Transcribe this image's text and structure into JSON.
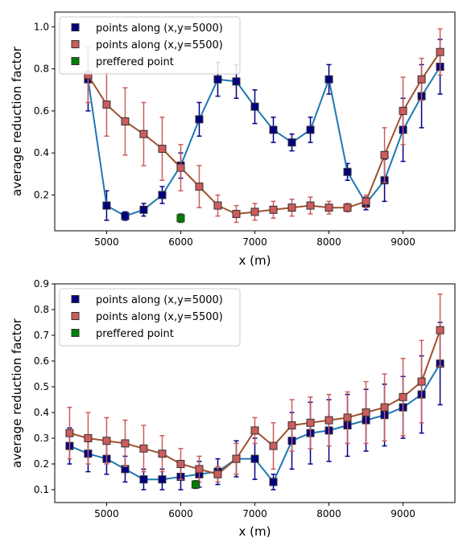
{
  "chart_data": [
    {
      "type": "line",
      "xlabel": "x (m)",
      "ylabel": "average reduction factor",
      "xlim": [
        4300,
        9700
      ],
      "ylim": [
        0.03,
        1.07
      ],
      "xticks": [
        5000,
        6000,
        7000,
        8000,
        9000
      ],
      "xtick_labels": [
        "5000",
        "6000",
        "7000",
        "8000",
        "9000"
      ],
      "yticks": [
        0.2,
        0.4,
        0.6,
        0.8,
        1.0
      ],
      "ytick_labels": [
        "0.2",
        "0.4",
        "0.6",
        "0.8",
        "1.0"
      ],
      "grid": false,
      "legend_position": "top-left",
      "series": [
        {
          "name": "points along (x,y=5000)",
          "color": "#1f77b4",
          "marker_color": "#000080",
          "error_color": "#00008b",
          "x": [
            4750,
            5000,
            5250,
            5500,
            5750,
            6000,
            6250,
            6500,
            6750,
            7000,
            7250,
            7500,
            7750,
            8000,
            8250,
            8500,
            8750,
            9000,
            9250,
            9500
          ],
          "y": [
            0.75,
            0.15,
            0.1,
            0.13,
            0.2,
            0.34,
            0.56,
            0.75,
            0.74,
            0.62,
            0.51,
            0.45,
            0.51,
            0.75,
            0.31,
            0.16,
            0.27,
            0.51,
            0.67,
            0.81
          ],
          "err": [
            0.15,
            0.07,
            0.02,
            0.03,
            0.04,
            0.06,
            0.08,
            0.08,
            0.08,
            0.08,
            0.06,
            0.04,
            0.06,
            0.07,
            0.04,
            0.03,
            0.1,
            0.15,
            0.15,
            0.13
          ]
        },
        {
          "name": "points along (x,y=5500)",
          "color": "#a0522d",
          "marker_color": "#cd5c5c",
          "error_color": "#cd5c5c",
          "x": [
            4750,
            5000,
            5250,
            5500,
            5750,
            6000,
            6250,
            6500,
            6750,
            7000,
            7250,
            7500,
            7750,
            8000,
            8250,
            8500,
            8750,
            9000,
            9250,
            9500
          ],
          "y": [
            0.77,
            0.63,
            0.55,
            0.49,
            0.42,
            0.33,
            0.24,
            0.15,
            0.11,
            0.12,
            0.13,
            0.14,
            0.15,
            0.14,
            0.14,
            0.17,
            0.39,
            0.6,
            0.75,
            0.88
          ],
          "err": [
            0.13,
            0.15,
            0.16,
            0.15,
            0.15,
            0.11,
            0.1,
            0.05,
            0.04,
            0.04,
            0.04,
            0.04,
            0.04,
            0.03,
            0.02,
            0.03,
            0.13,
            0.16,
            0.1,
            0.11
          ]
        },
        {
          "name": "preffered point",
          "color": "#006400",
          "marker_color": "#008000",
          "error_color": "#006400",
          "x": [
            6000
          ],
          "y": [
            0.09
          ],
          "err": [
            0.02
          ]
        }
      ]
    },
    {
      "type": "line",
      "xlabel": "x (m)",
      "ylabel": "average reduction factor",
      "xlim": [
        4300,
        9700
      ],
      "ylim": [
        0.05,
        0.9
      ],
      "xticks": [
        5000,
        6000,
        7000,
        8000,
        9000
      ],
      "xtick_labels": [
        "5000",
        "6000",
        "7000",
        "8000",
        "9000"
      ],
      "yticks": [
        0.1,
        0.2,
        0.3,
        0.4,
        0.5,
        0.6,
        0.7,
        0.8,
        0.9
      ],
      "ytick_labels": [
        "0.1",
        "0.2",
        "0.3",
        "0.4",
        "0.5",
        "0.6",
        "0.7",
        "0.8",
        "0.9"
      ],
      "grid": false,
      "legend_position": "top-left",
      "series": [
        {
          "name": "points along (x,y=5000)",
          "color": "#1f77b4",
          "marker_color": "#000080",
          "error_color": "#00008b",
          "x": [
            4500,
            4750,
            5000,
            5250,
            5500,
            5750,
            6000,
            6250,
            6500,
            6750,
            7000,
            7250,
            7500,
            7750,
            8000,
            8250,
            8500,
            8750,
            9000,
            9250,
            9500
          ],
          "y": [
            0.27,
            0.24,
            0.22,
            0.18,
            0.14,
            0.14,
            0.15,
            0.16,
            0.17,
            0.22,
            0.22,
            0.13,
            0.29,
            0.32,
            0.33,
            0.35,
            0.37,
            0.39,
            0.42,
            0.47,
            0.59
          ],
          "err": [
            0.07,
            0.07,
            0.06,
            0.05,
            0.04,
            0.04,
            0.05,
            0.05,
            0.05,
            0.07,
            0.08,
            0.03,
            0.11,
            0.12,
            0.12,
            0.12,
            0.12,
            0.12,
            0.12,
            0.15,
            0.16
          ]
        },
        {
          "name": "points along (x,y=5500)",
          "color": "#a0522d",
          "marker_color": "#cd5c5c",
          "error_color": "#cd5c5c",
          "x": [
            4500,
            4750,
            5000,
            5250,
            5500,
            5750,
            6000,
            6250,
            6500,
            6750,
            7000,
            7250,
            7500,
            7750,
            8000,
            8250,
            8500,
            8750,
            9000,
            9250,
            9500
          ],
          "y": [
            0.32,
            0.3,
            0.29,
            0.28,
            0.26,
            0.24,
            0.2,
            0.18,
            0.16,
            0.22,
            0.33,
            0.27,
            0.35,
            0.36,
            0.37,
            0.38,
            0.4,
            0.42,
            0.46,
            0.52,
            0.72
          ],
          "err": [
            0.1,
            0.1,
            0.09,
            0.09,
            0.09,
            0.07,
            0.06,
            0.05,
            0.03,
            0.06,
            0.05,
            0.09,
            0.1,
            0.1,
            0.1,
            0.1,
            0.12,
            0.13,
            0.15,
            0.16,
            0.14
          ]
        },
        {
          "name": "preffered point",
          "color": "#006400",
          "marker_color": "#008000",
          "error_color": "#006400",
          "x": [
            6200
          ],
          "y": [
            0.12
          ],
          "err": [
            0.015
          ]
        }
      ]
    }
  ]
}
